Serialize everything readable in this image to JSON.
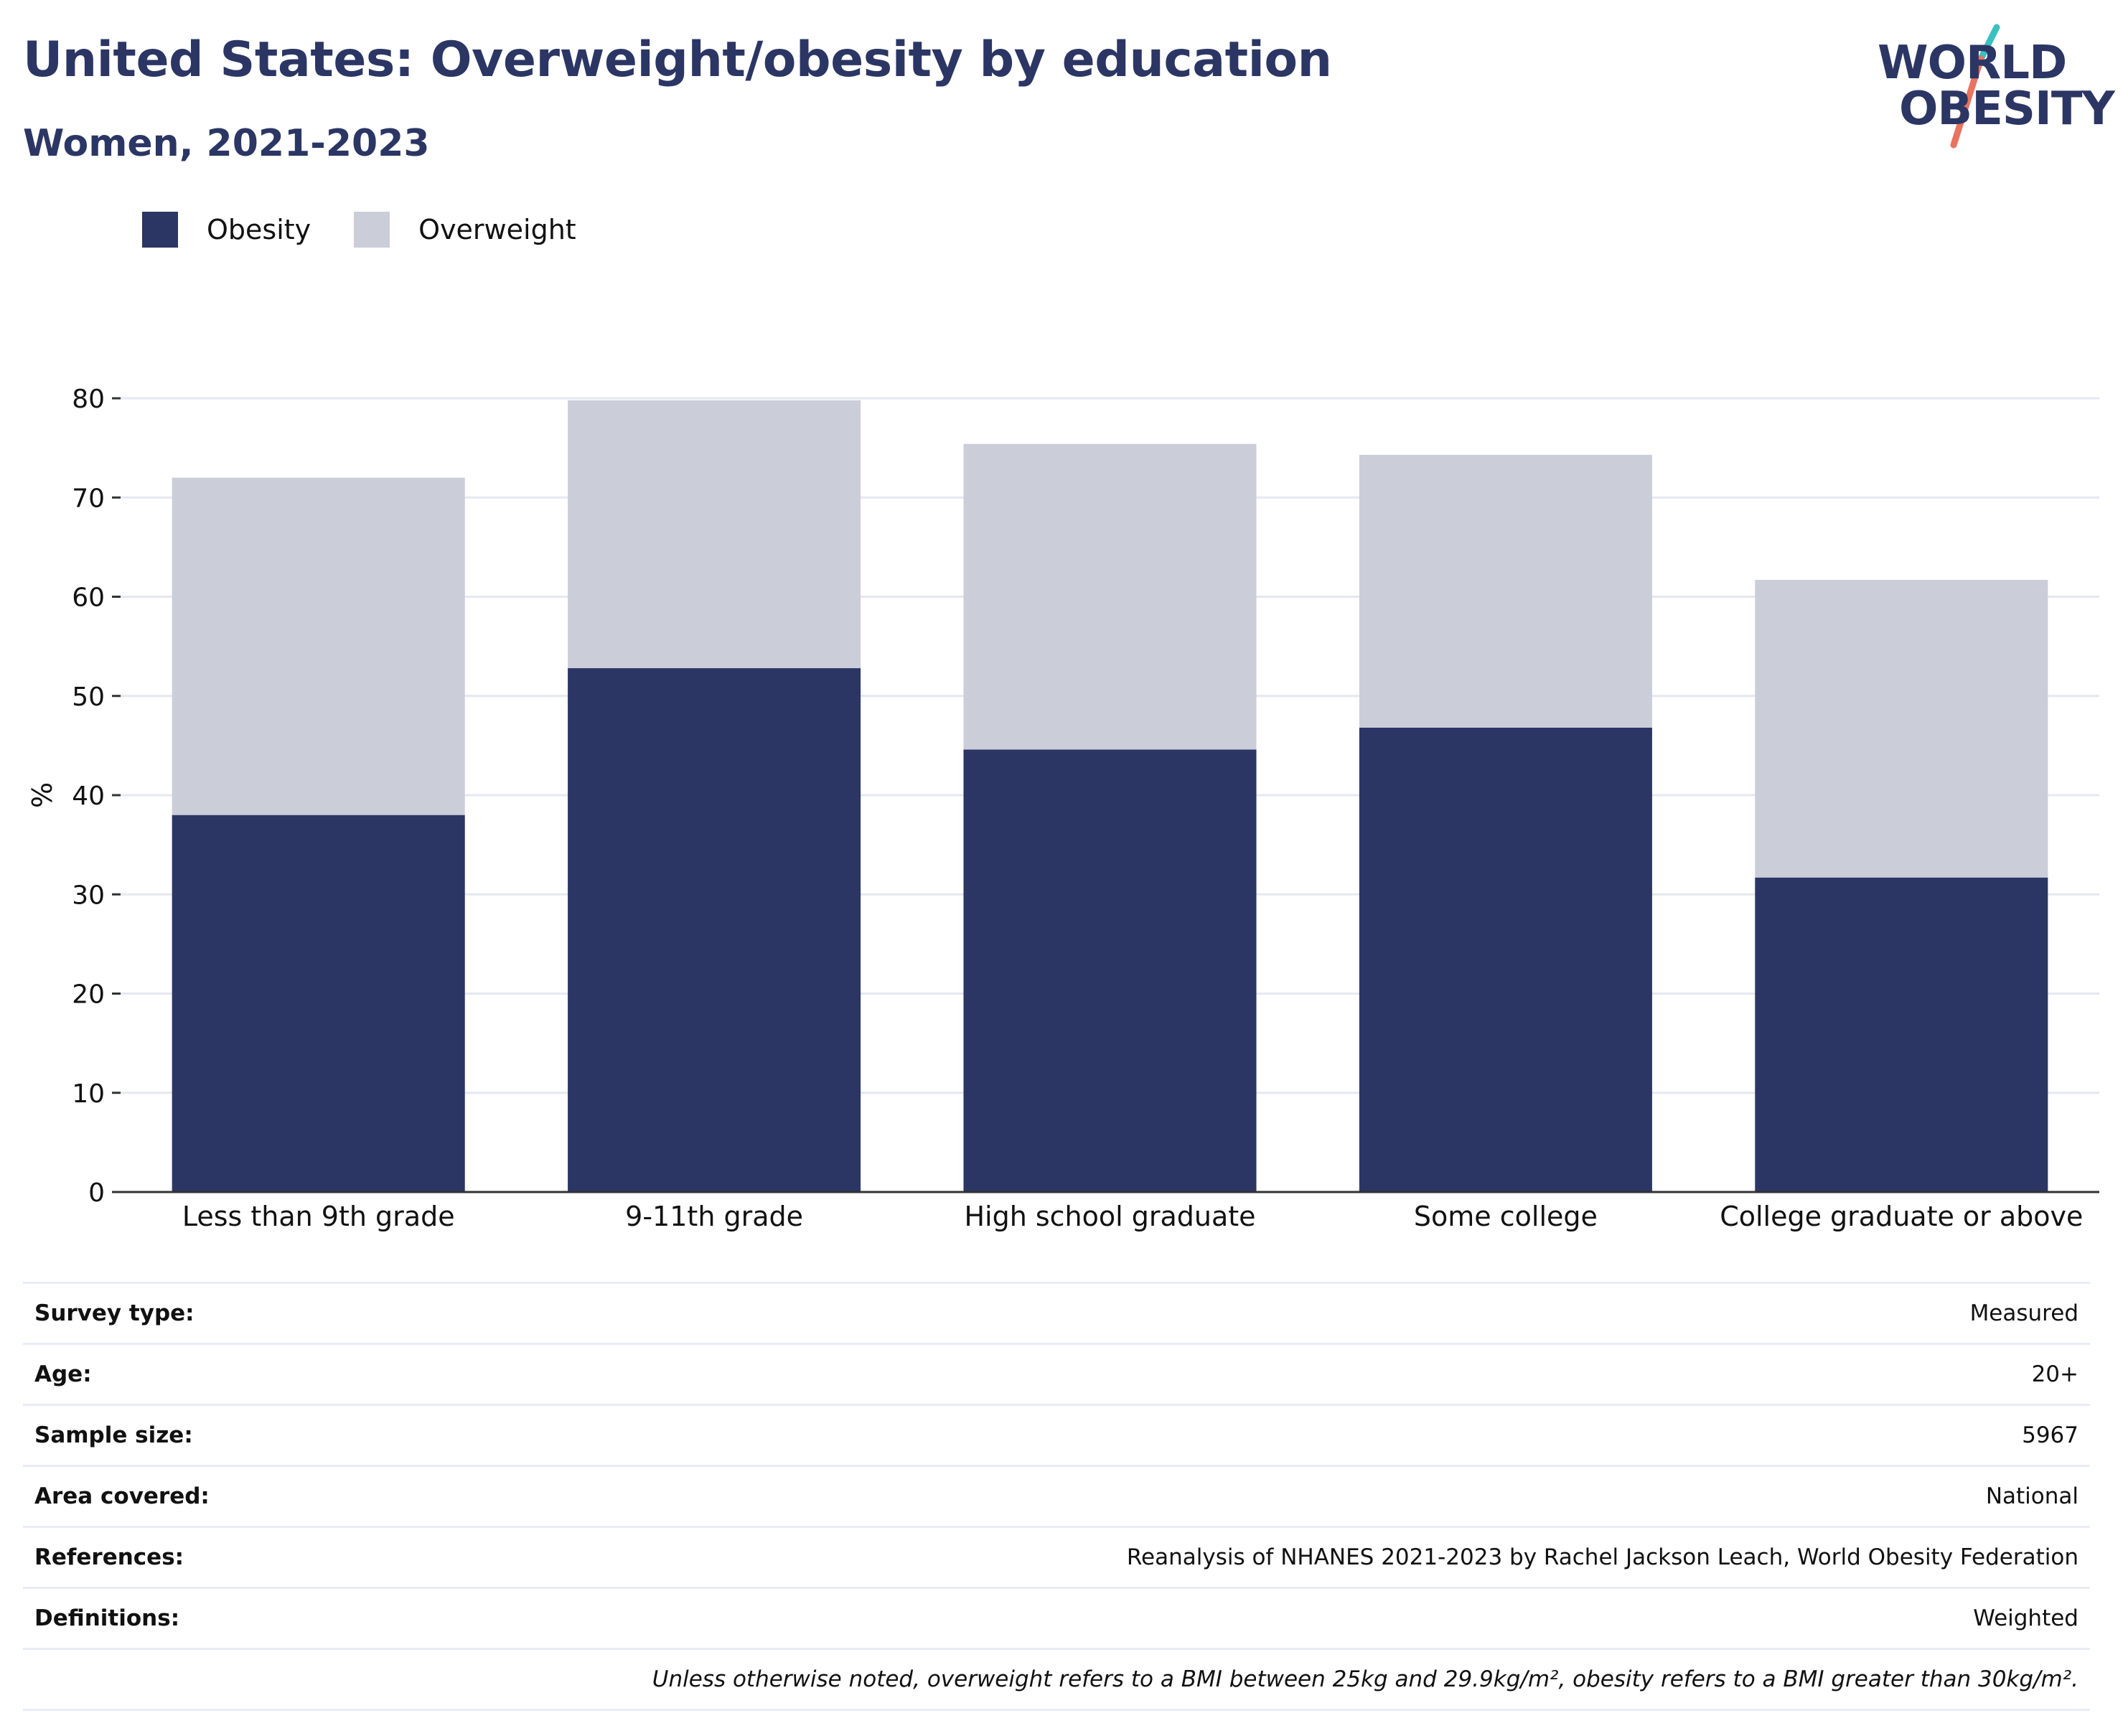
{
  "header": {
    "title": "United States: Overweight/obesity by education",
    "subtitle": "Women, 2021-2023"
  },
  "logo": {
    "line1": "WORLD",
    "line2": "OBESITY",
    "colors": {
      "text": "#2b3664",
      "slash_top": "#3bbfc1",
      "slash_bottom": "#e8735f"
    }
  },
  "colors": {
    "obesity": "#2b3664",
    "overweight": "#cbcdd9",
    "gridline": "#e6e8f0",
    "axis": "#333333"
  },
  "chart_data": {
    "type": "bar",
    "stacked": true,
    "categories": [
      "Less than 9th grade",
      "9-11th grade",
      "High school graduate",
      "Some college",
      "College graduate or above"
    ],
    "series": [
      {
        "name": "Obesity",
        "values": [
          38.0,
          52.8,
          44.6,
          46.8,
          31.7
        ]
      },
      {
        "name": "Overweight",
        "values": [
          34.0,
          27.0,
          30.8,
          27.5,
          30.0
        ]
      }
    ],
    "ylabel": "%",
    "xlabel": "",
    "ylim": [
      0,
      80
    ],
    "yticks": [
      0,
      10,
      20,
      30,
      40,
      50,
      60,
      70,
      80
    ],
    "grid": true,
    "legend_position": "top-left"
  },
  "metadata": [
    {
      "key": "Survey type:",
      "value": "Measured"
    },
    {
      "key": "Age:",
      "value": "20+"
    },
    {
      "key": "Sample size:",
      "value": "5967"
    },
    {
      "key": "Area covered:",
      "value": "National"
    },
    {
      "key": "References:",
      "value": "Reanalysis of NHANES 2021-2023 by Rachel Jackson Leach, World Obesity Federation"
    },
    {
      "key": "Definitions:",
      "value": "Weighted"
    }
  ],
  "footnote": "Unless otherwise noted, overweight refers to a BMI between 25kg and 29.9kg/m², obesity refers to a BMI greater than 30kg/m²."
}
